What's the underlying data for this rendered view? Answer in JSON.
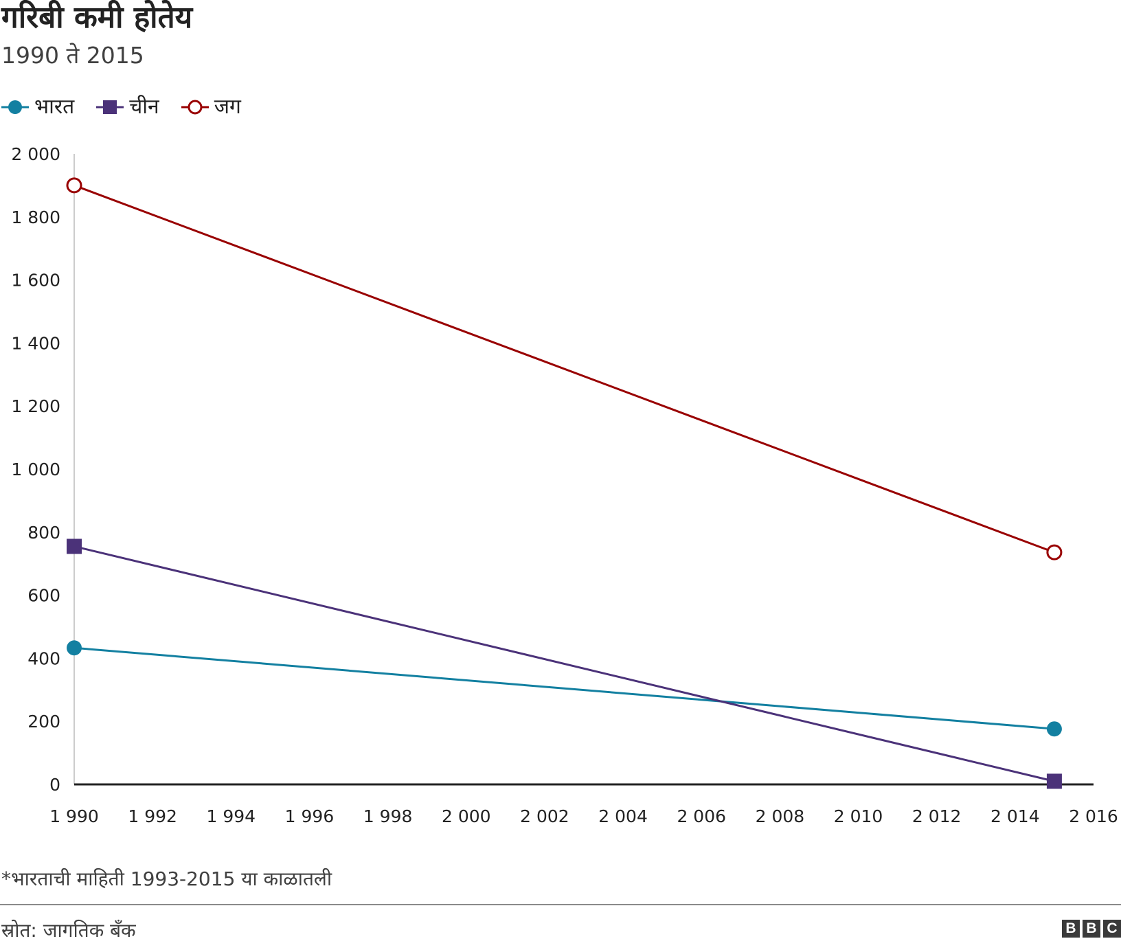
{
  "header": {
    "title": "गरिबी कमी होतेय",
    "subtitle": "1990 ते 2015"
  },
  "legend": [
    {
      "label": "भारत",
      "marker": "circle-filled",
      "color": "#1380A1"
    },
    {
      "label": "चीन",
      "marker": "square-filled",
      "color": "#4B3279"
    },
    {
      "label": "जग",
      "marker": "circle-open",
      "color": "#990000"
    }
  ],
  "chart_data": {
    "type": "line",
    "title": "गरिबी कमी होतेय",
    "subtitle": "1990 ते 2015",
    "xlabel": "",
    "ylabel": "",
    "xlim": [
      1990,
      2016
    ],
    "ylim": [
      0,
      2000
    ],
    "x_ticks": [
      1990,
      1992,
      1994,
      1996,
      1998,
      2000,
      2002,
      2004,
      2006,
      2008,
      2010,
      2012,
      2014,
      2016
    ],
    "x_tick_labels": [
      "1 990",
      "1 992",
      "1 994",
      "1 996",
      "1 998",
      "2 000",
      "2 002",
      "2 004",
      "2 006",
      "2 008",
      "2 010",
      "2 012",
      "2 014",
      "2 016"
    ],
    "y_ticks": [
      0,
      200,
      400,
      600,
      800,
      1000,
      1200,
      1400,
      1600,
      1800,
      2000
    ],
    "y_tick_labels": [
      "0",
      "200",
      "400",
      "600",
      "800",
      "1 000",
      "1 200",
      "1 400",
      "1 600",
      "1 800",
      "2 000"
    ],
    "grid": false,
    "legend_position": "top-left",
    "series": [
      {
        "name": "भारत",
        "color": "#1380A1",
        "marker": "circle-filled",
        "points": [
          {
            "x": 1990,
            "y": 433
          },
          {
            "x": 2015,
            "y": 176
          }
        ]
      },
      {
        "name": "चीन",
        "color": "#4B3279",
        "marker": "square-filled",
        "points": [
          {
            "x": 1990,
            "y": 755
          },
          {
            "x": 2015,
            "y": 10
          }
        ]
      },
      {
        "name": "जग",
        "color": "#990000",
        "marker": "circle-open",
        "points": [
          {
            "x": 1990,
            "y": 1900
          },
          {
            "x": 2015,
            "y": 736
          }
        ]
      }
    ]
  },
  "footnote": "*भारताची माहिती 1993-2015 या काळातली",
  "source": "स्रोत: जागतिक बँक",
  "logo": {
    "letters": [
      "B",
      "B",
      "C"
    ]
  }
}
